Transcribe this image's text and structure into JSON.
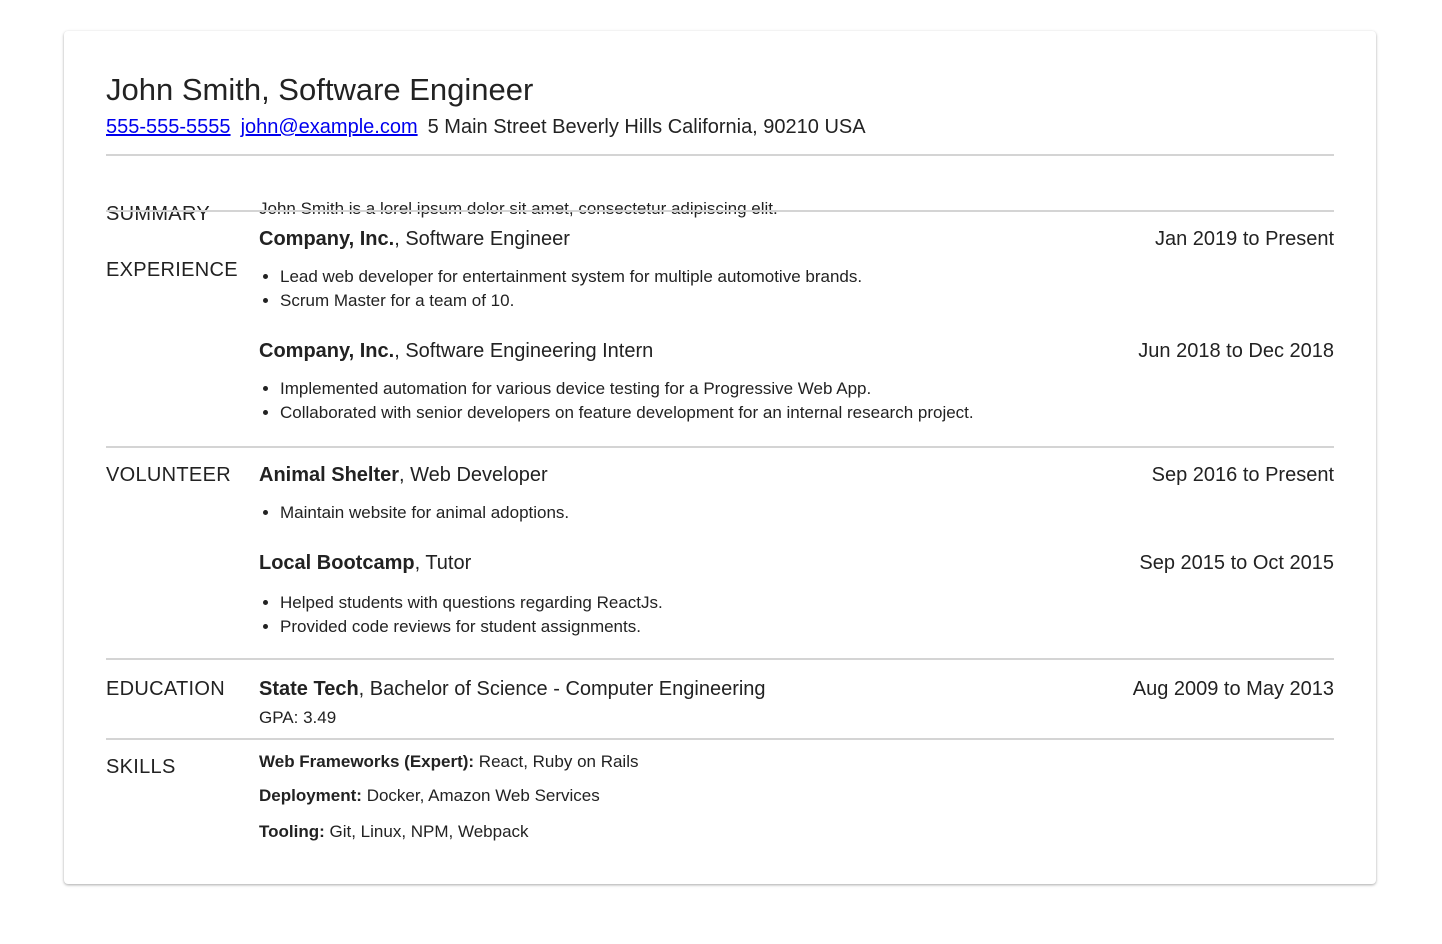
{
  "header": {
    "name": "John Smith, Software Engineer",
    "phone": "555-555-5555",
    "email": "john@example.com",
    "address": "5 Main Street Beverly Hills California, 90210 USA"
  },
  "summary": {
    "label": "SUMMARY",
    "text": "John Smith is a lorel ipsum dolor sit amet, consectetur adipiscing elit."
  },
  "experience": {
    "label": "EXPERIENCE",
    "entries": [
      {
        "org": "Company, Inc.",
        "role": ", Software Engineer",
        "dates": "Jan 2019 to Present",
        "bullets": [
          "Lead web developer for entertainment system for multiple automotive brands.",
          "Scrum Master for a team of 10."
        ]
      },
      {
        "org": "Company, Inc.",
        "role": ", Software Engineering Intern",
        "dates": "Jun 2018 to Dec 2018",
        "bullets": [
          "Implemented automation for various device testing for a Progressive Web App.",
          "Collaborated with senior developers on feature development for an internal research project."
        ]
      }
    ]
  },
  "volunteer": {
    "label": "VOLUNTEER",
    "entries": [
      {
        "org": "Animal Shelter",
        "role": ", Web Developer",
        "dates": "Sep 2016 to Present",
        "bullets": [
          "Maintain website for animal adoptions."
        ]
      },
      {
        "org": "Local Bootcamp",
        "role": ", Tutor",
        "dates": "Sep 2015 to Oct 2015",
        "bullets": [
          "Helped students with questions regarding ReactJs.",
          "Provided code reviews for student assignments."
        ]
      }
    ]
  },
  "education": {
    "label": "EDUCATION",
    "school": "State Tech",
    "degree": ", Bachelor of Science - Computer Engineering",
    "dates": "Aug 2009 to May 2013",
    "gpa": "GPA: 3.49"
  },
  "skills": {
    "label": "SKILLS",
    "items": [
      {
        "category": "Web Frameworks (Expert):",
        "value": " React, Ruby on Rails"
      },
      {
        "category": "Deployment:",
        "value": " Docker, Amazon Web Services"
      },
      {
        "category": "Tooling:",
        "value": " Git, Linux, NPM, Webpack"
      }
    ]
  },
  "colors": {
    "link": "#0000ee",
    "text": "#222222",
    "divider": "#d4d4d4"
  }
}
